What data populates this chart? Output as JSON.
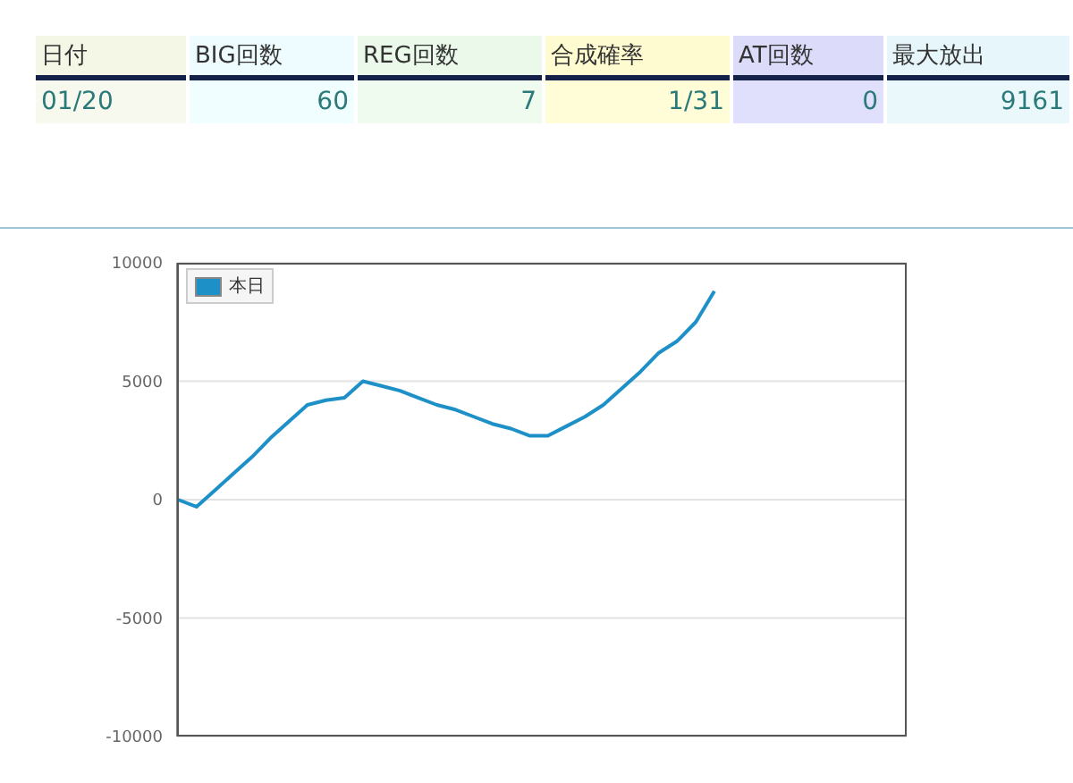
{
  "chart_data": {
    "type": "line",
    "annotations": [
      "日付",
      "BIG回数",
      "REG回数",
      "合成確率",
      "AT回数",
      "最大放出",
      "01/20",
      "60",
      "7",
      "1/31",
      "0",
      "9161"
    ],
    "categories": [
      null,
      null,
      null,
      null,
      null,
      null,
      null,
      null,
      null,
      null,
      null,
      null,
      null,
      null,
      null,
      null,
      null,
      null,
      null,
      null,
      null,
      null,
      null,
      null,
      null,
      null,
      null,
      null,
      null,
      null,
      null,
      null,
      null,
      null,
      null,
      null,
      null,
      null,
      null,
      null
    ],
    "series": [
      {
        "name": "本日",
        "color": "#1e90c8",
        "values": [
          0,
          -300,
          400,
          1100,
          1800,
          2600,
          3300,
          4000,
          4200,
          4300,
          5000,
          4800,
          4600,
          4300,
          4000,
          3800,
          3500,
          3200,
          3000,
          2700,
          2700,
          3100,
          3500,
          4000,
          4700,
          5400,
          6200,
          6700,
          7500,
          8800,
          null,
          null,
          null,
          null,
          null,
          null,
          null,
          null,
          null,
          null
        ]
      }
    ],
    "ylim": [
      -10000,
      10000
    ],
    "yticks": [
      -10000,
      -5000,
      0,
      5000,
      10000
    ],
    "grid": "y",
    "legend": "top left",
    "marker": "none",
    "line_style": "solid"
  }
}
